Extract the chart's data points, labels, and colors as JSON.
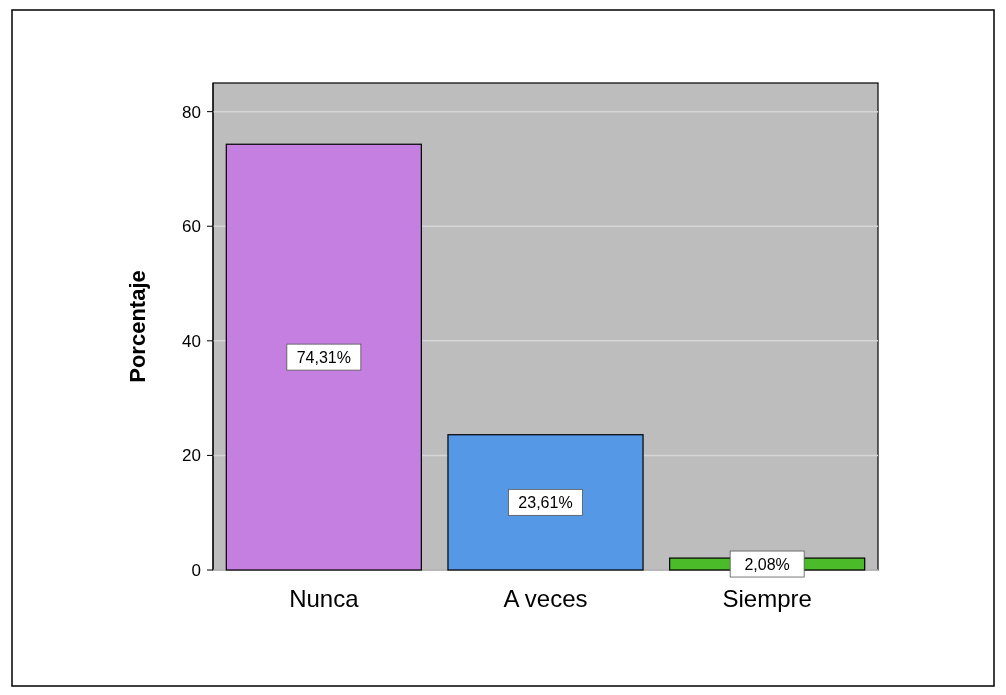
{
  "chart_data": {
    "type": "bar",
    "ylabel": "Porcentaje",
    "categories": [
      "Nunca",
      "A veces",
      "Siempre"
    ],
    "values": [
      74.31,
      23.61,
      2.08
    ],
    "colors": [
      "#c47fe0",
      "#5599e6",
      "#4cbb2a"
    ],
    "value_labels": [
      "74,31%",
      "23,61%",
      "2,08%"
    ],
    "ylim": [
      0,
      85
    ],
    "yticks": [
      0,
      20,
      40,
      60,
      80
    ],
    "grid": "y"
  }
}
